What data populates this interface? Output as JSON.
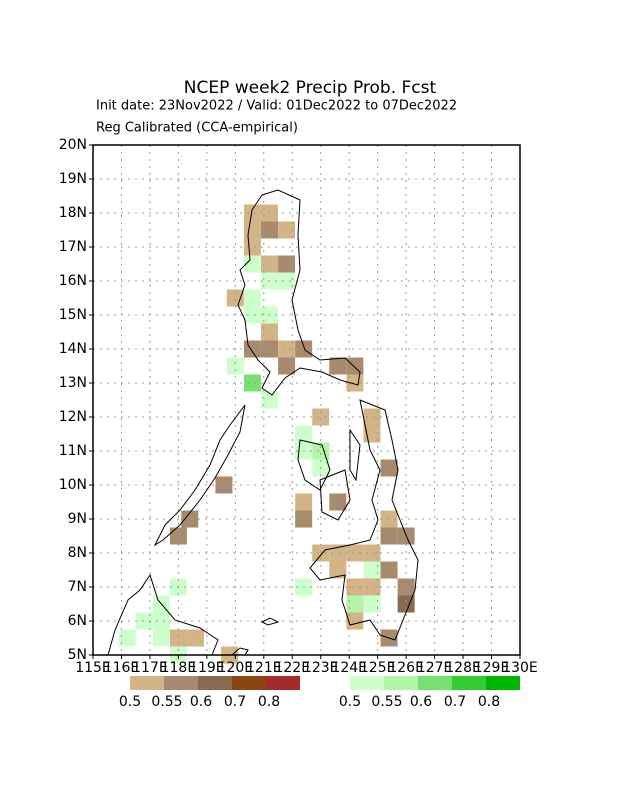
{
  "title": "NCEP week2 Precip Prob. Fcst",
  "subtitle_1": "Init date: 23Nov2022 / Valid: 01Dec2022 to 07Dec2022",
  "subtitle_2": "Reg Calibrated (CCA-empirical)",
  "xlim": [
    115,
    130
  ],
  "ylim": [
    5,
    20
  ],
  "xticks": [
    {
      "value": 115,
      "label": "115E"
    },
    {
      "value": 116,
      "label": "116E"
    },
    {
      "value": 117,
      "label": "117E"
    },
    {
      "value": 118,
      "label": "118E"
    },
    {
      "value": 119,
      "label": "119E"
    },
    {
      "value": 120,
      "label": "120E"
    },
    {
      "value": 121,
      "label": "121E"
    },
    {
      "value": 122,
      "label": "122E"
    },
    {
      "value": 123,
      "label": "123E"
    },
    {
      "value": 124,
      "label": "124E"
    },
    {
      "value": 125,
      "label": "125E"
    },
    {
      "value": 126,
      "label": "126E"
    },
    {
      "value": 127,
      "label": "127E"
    },
    {
      "value": 128,
      "label": "128E"
    },
    {
      "value": 129,
      "label": "129E"
    },
    {
      "value": 130,
      "label": "130E"
    }
  ],
  "yticks": [
    {
      "value": 5,
      "label": "5N"
    },
    {
      "value": 6,
      "label": "6N"
    },
    {
      "value": 7,
      "label": "7N"
    },
    {
      "value": 8,
      "label": "8N"
    },
    {
      "value": 9,
      "label": "9N"
    },
    {
      "value": 10,
      "label": "10N"
    },
    {
      "value": 11,
      "label": "11N"
    },
    {
      "value": 12,
      "label": "12N"
    },
    {
      "value": 13,
      "label": "13N"
    },
    {
      "value": 14,
      "label": "14N"
    },
    {
      "value": 15,
      "label": "15N"
    },
    {
      "value": 16,
      "label": "16N"
    },
    {
      "value": 17,
      "label": "17N"
    },
    {
      "value": 18,
      "label": "18N"
    },
    {
      "value": 19,
      "label": "19N"
    },
    {
      "value": 20,
      "label": "20N"
    }
  ],
  "grid": true,
  "below_normal_scale": {
    "values": [
      0.5,
      0.55,
      0.6,
      0.7,
      0.8
    ],
    "colors": [
      "#d2b487",
      "#a88a6e",
      "#8a6a4f",
      "#8b4513",
      "#a52a2a"
    ]
  },
  "above_normal_scale": {
    "values": [
      0.5,
      0.55,
      0.6,
      0.7,
      0.8
    ],
    "colors": [
      "#ccffcc",
      "#b3f5a8",
      "#77e070",
      "#33cc33",
      "#00b800"
    ]
  },
  "below_normal_cells": [
    [
      120.6,
      18.0,
      0.5
    ],
    [
      121.2,
      18.0,
      0.5
    ],
    [
      120.6,
      17.5,
      0.5
    ],
    [
      121.2,
      17.5,
      0.55
    ],
    [
      121.8,
      17.5,
      0.5
    ],
    [
      120.6,
      17.0,
      0.5
    ],
    [
      121.8,
      16.5,
      0.55
    ],
    [
      121.2,
      16.5,
      0.5
    ],
    [
      120.0,
      15.5,
      0.5
    ],
    [
      121.2,
      14.5,
      0.5
    ],
    [
      120.6,
      14.0,
      0.55
    ],
    [
      121.2,
      14.0,
      0.55
    ],
    [
      121.8,
      14.0,
      0.5
    ],
    [
      122.4,
      14.0,
      0.55
    ],
    [
      121.8,
      13.5,
      0.55
    ],
    [
      123.6,
      13.5,
      0.55
    ],
    [
      124.2,
      13.5,
      0.55
    ],
    [
      124.2,
      13.0,
      0.5
    ],
    [
      123.0,
      12.0,
      0.5
    ],
    [
      124.8,
      12.0,
      0.5
    ],
    [
      124.8,
      11.5,
      0.5
    ],
    [
      125.4,
      10.5,
      0.55
    ],
    [
      122.4,
      9.5,
      0.5
    ],
    [
      123.6,
      9.5,
      0.55
    ],
    [
      122.4,
      9.0,
      0.55
    ],
    [
      125.4,
      9.0,
      0.5
    ],
    [
      119.6,
      10.0,
      0.55
    ],
    [
      118.4,
      9.0,
      0.55
    ],
    [
      118.0,
      8.5,
      0.55
    ],
    [
      123.0,
      8.0,
      0.5
    ],
    [
      123.6,
      8.0,
      0.5
    ],
    [
      124.2,
      8.0,
      0.5
    ],
    [
      124.8,
      8.0,
      0.5
    ],
    [
      125.4,
      8.5,
      0.55
    ],
    [
      126.0,
      8.5,
      0.55
    ],
    [
      123.6,
      7.5,
      0.5
    ],
    [
      124.2,
      7.0,
      0.5
    ],
    [
      124.8,
      7.0,
      0.5
    ],
    [
      125.4,
      7.5,
      0.55
    ],
    [
      126.0,
      7.0,
      0.55
    ],
    [
      126.0,
      6.5,
      0.6
    ],
    [
      124.2,
      6.0,
      0.5
    ],
    [
      125.4,
      5.5,
      0.55
    ],
    [
      118.6,
      5.5,
      0.5
    ],
    [
      118.0,
      5.5,
      0.5
    ],
    [
      119.8,
      5.0,
      0.5
    ]
  ],
  "above_normal_cells": [
    [
      121.2,
      16.0,
      0.5
    ],
    [
      120.6,
      16.5,
      0.5
    ],
    [
      121.8,
      16.0,
      0.5
    ],
    [
      120.6,
      15.5,
      0.5
    ],
    [
      121.2,
      15.0,
      0.5
    ],
    [
      120.6,
      15.0,
      0.5
    ],
    [
      121.2,
      12.5,
      0.5
    ],
    [
      120.6,
      13.0,
      0.6
    ],
    [
      120.0,
      13.5,
      0.5
    ],
    [
      122.4,
      11.5,
      0.5
    ],
    [
      122.4,
      11.0,
      0.5
    ],
    [
      123.0,
      11.0,
      0.55
    ],
    [
      123.0,
      10.5,
      0.5
    ],
    [
      124.8,
      7.5,
      0.5
    ],
    [
      124.2,
      6.5,
      0.55
    ],
    [
      124.8,
      6.5,
      0.5
    ],
    [
      122.4,
      7.0,
      0.5
    ],
    [
      118.0,
      7.0,
      0.5
    ],
    [
      117.4,
      6.5,
      0.5
    ],
    [
      116.8,
      6.0,
      0.5
    ],
    [
      117.4,
      6.0,
      0.5
    ],
    [
      116.2,
      5.5,
      0.5
    ],
    [
      117.4,
      5.5,
      0.5
    ],
    [
      118.0,
      5.0,
      0.5
    ]
  ]
}
